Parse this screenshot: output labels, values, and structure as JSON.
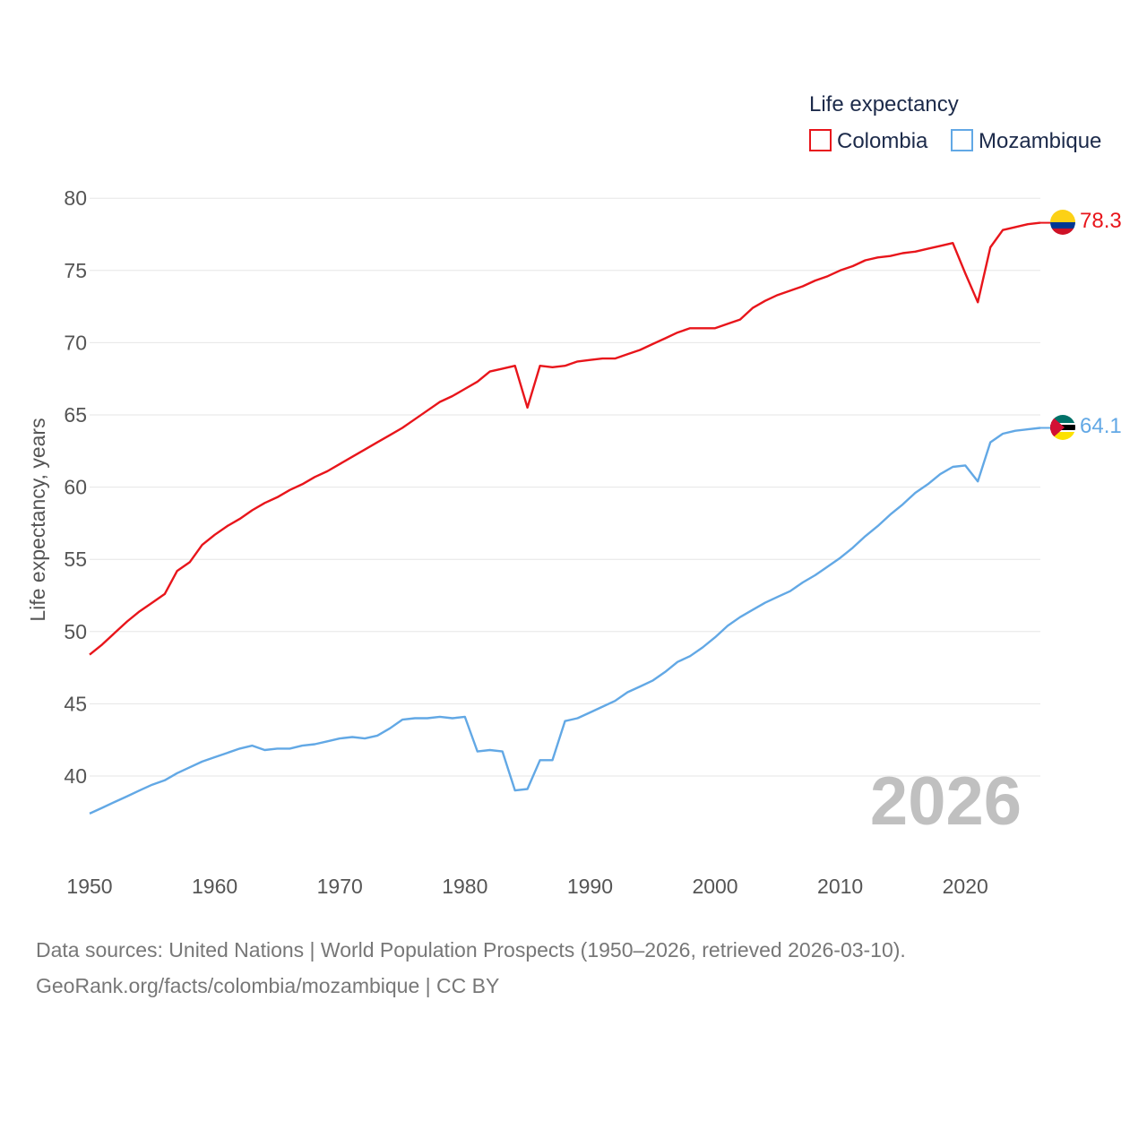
{
  "chart_data": {
    "type": "line",
    "ylabel": "Life expectancy, years",
    "legend_title": "Life expectancy",
    "legend_position": "top-right",
    "year_stamp": "2026",
    "xlim": [
      1950,
      2026
    ],
    "ylim": [
      35,
      82
    ],
    "x_ticks": [
      "1950",
      "1960",
      "1970",
      "1980",
      "1990",
      "2000",
      "2010",
      "2020"
    ],
    "y_ticks": [
      "40",
      "45",
      "50",
      "55",
      "60",
      "65",
      "70",
      "75",
      "80"
    ],
    "grid": true,
    "x": [
      1950,
      1951,
      1952,
      1953,
      1954,
      1955,
      1956,
      1957,
      1958,
      1959,
      1960,
      1961,
      1962,
      1963,
      1964,
      1965,
      1966,
      1967,
      1968,
      1969,
      1970,
      1971,
      1972,
      1973,
      1974,
      1975,
      1976,
      1977,
      1978,
      1979,
      1980,
      1981,
      1982,
      1983,
      1984,
      1985,
      1986,
      1987,
      1988,
      1989,
      1990,
      1991,
      1992,
      1993,
      1994,
      1995,
      1996,
      1997,
      1998,
      1999,
      2000,
      2001,
      2002,
      2003,
      2004,
      2005,
      2006,
      2007,
      2008,
      2009,
      2010,
      2011,
      2012,
      2013,
      2014,
      2015,
      2016,
      2017,
      2018,
      2019,
      2020,
      2021,
      2022,
      2023,
      2024,
      2025,
      2026
    ],
    "series": [
      {
        "name": "Colombia",
        "color": "#e8151b",
        "end_label": "78.3",
        "values": [
          48.4,
          49.1,
          49.9,
          50.7,
          51.4,
          52.0,
          52.6,
          54.2,
          54.8,
          56.0,
          56.7,
          57.3,
          57.8,
          58.4,
          58.9,
          59.3,
          59.8,
          60.2,
          60.7,
          61.1,
          61.6,
          62.1,
          62.6,
          63.1,
          63.6,
          64.1,
          64.7,
          65.3,
          65.9,
          66.3,
          66.8,
          67.3,
          68.0,
          68.2,
          68.4,
          65.5,
          68.4,
          68.3,
          68.4,
          68.7,
          68.8,
          68.9,
          68.9,
          69.2,
          69.5,
          69.9,
          70.3,
          70.7,
          71.0,
          71.0,
          71.0,
          71.3,
          71.6,
          72.4,
          72.9,
          73.3,
          73.6,
          73.9,
          74.3,
          74.6,
          75.0,
          75.3,
          75.7,
          75.9,
          76.0,
          76.2,
          76.3,
          76.5,
          76.7,
          76.9,
          74.8,
          72.8,
          76.6,
          77.8,
          78.0,
          78.2,
          78.3
        ]
      },
      {
        "name": "Mozambique",
        "color": "#62a8e5",
        "end_label": "64.1",
        "values": [
          37.4,
          37.8,
          38.2,
          38.6,
          39.0,
          39.4,
          39.7,
          40.2,
          40.6,
          41.0,
          41.3,
          41.6,
          41.9,
          42.1,
          41.8,
          41.9,
          41.9,
          42.1,
          42.2,
          42.4,
          42.6,
          42.7,
          42.6,
          42.8,
          43.3,
          43.9,
          44.0,
          44.0,
          44.1,
          44.0,
          44.1,
          41.7,
          41.8,
          41.7,
          39.0,
          39.1,
          41.1,
          41.1,
          43.8,
          44.0,
          44.4,
          44.8,
          45.2,
          45.8,
          46.2,
          46.6,
          47.2,
          47.9,
          48.3,
          48.9,
          49.6,
          50.4,
          51.0,
          51.5,
          52.0,
          52.4,
          52.8,
          53.4,
          53.9,
          54.5,
          55.1,
          55.8,
          56.6,
          57.3,
          58.1,
          58.8,
          59.6,
          60.2,
          60.9,
          61.4,
          61.5,
          60.4,
          63.1,
          63.7,
          63.9,
          64.0,
          64.1
        ]
      }
    ]
  },
  "footer": {
    "line1": "Data sources: United Nations | World Population Prospects (1950–2026, retrieved 2026-03-10).",
    "line2": "GeoRank.org/facts/colombia/mozambique | CC BY"
  }
}
